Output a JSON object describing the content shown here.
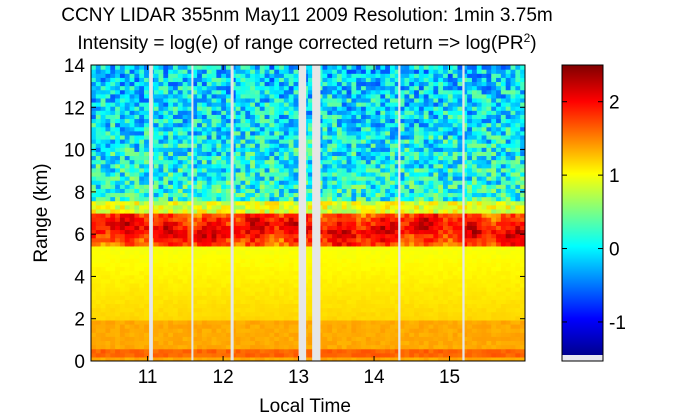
{
  "chart_data": {
    "type": "heatmap",
    "title": "CCNY LIDAR 355nm May11 2009 Resolution: 1min 3.75m",
    "subtitle_prefix": "Intensity = log(e) of range corrected return => log(PR",
    "subtitle_sup": "2",
    "subtitle_suffix": ")",
    "xlabel": "Local Time",
    "ylabel": "Range (km)",
    "xlim": [
      10.25,
      16.0
    ],
    "ylim": [
      0,
      14
    ],
    "xticks": [
      11,
      12,
      13,
      14,
      15
    ],
    "yticks": [
      0,
      2,
      4,
      6,
      8,
      10,
      12,
      14
    ],
    "colorbar": {
      "range": [
        -1.45,
        2.5
      ],
      "ticks": [
        -1,
        0,
        1,
        2
      ],
      "colormap": "jet"
    },
    "data_gaps_hours": [
      [
        11.02,
        11.07
      ],
      [
        11.58,
        11.6
      ],
      [
        12.1,
        12.14
      ],
      [
        13.0,
        13.1
      ],
      [
        13.18,
        13.29
      ],
      [
        14.32,
        14.35
      ],
      [
        15.17,
        15.2
      ]
    ],
    "layers": {
      "surface_band_km": [
        0.1,
        0.6
      ],
      "boundary_layer_top_km": 2.0,
      "smoke_layer_km": [
        5.5,
        7.0
      ],
      "noise_above_km": 7.5
    }
  },
  "colors": {
    "background": "#ffffff",
    "gap_fill": "#e6e6e6",
    "axis": "#000000"
  }
}
